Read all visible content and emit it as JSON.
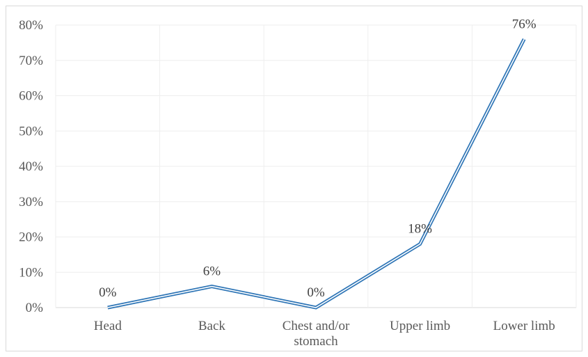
{
  "chart_data": {
    "type": "line",
    "categories": [
      "Head",
      "Back",
      "Chest and/or stomach",
      "Upper limb",
      "Lower limb"
    ],
    "category_lines": [
      [
        "Head"
      ],
      [
        "Back"
      ],
      [
        "Chest and/or",
        "stomach"
      ],
      [
        "Upper limb"
      ],
      [
        "Lower limb"
      ]
    ],
    "values": [
      0,
      6,
      0,
      18,
      76
    ],
    "data_labels": [
      "0%",
      "6%",
      "0%",
      "18%",
      "76%"
    ],
    "y_ticks": [
      "0%",
      "10%",
      "20%",
      "30%",
      "40%",
      "50%",
      "60%",
      "70%",
      "80%"
    ],
    "ylim": [
      0,
      80
    ],
    "grid": true,
    "legend": "none",
    "line_color": "#2e75b6"
  }
}
